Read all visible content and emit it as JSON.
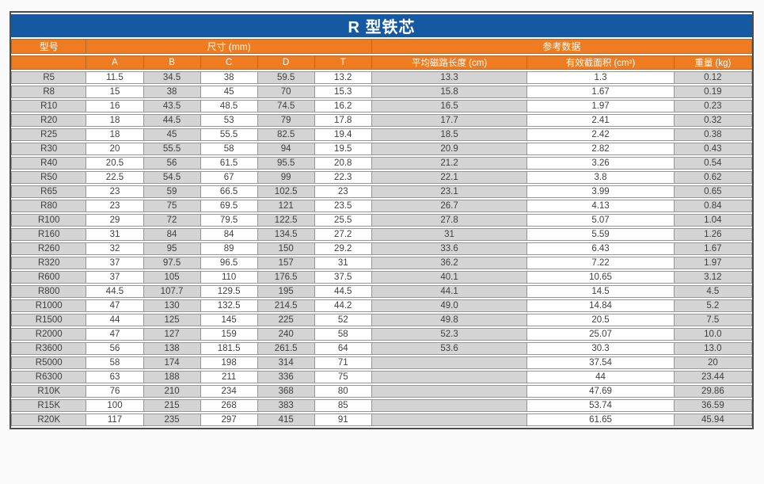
{
  "table": {
    "title": "R 型铁芯",
    "colors": {
      "title_bg": "#1559a2",
      "header_bg": "#ef7c20",
      "header_text": "#ffffff",
      "col_gray": "#d4d4d4",
      "col_white": "#ffffff",
      "grid": "#969696",
      "outer_border": "#4c4c4c",
      "cell_text": "#3f3f3f"
    },
    "headers": {
      "model": "型号",
      "size_group": "尺寸 (mm)",
      "ref_group": "参考数据",
      "size_cols": [
        "A",
        "B",
        "C",
        "D",
        "T"
      ],
      "ref_cols": [
        "平均磁路长度 (cm)",
        "有效截面积 (cm²)",
        "重量 (kg)"
      ]
    },
    "rows": [
      {
        "model": "R5",
        "values": [
          "11.5",
          "34.5",
          "38",
          "59.5",
          "13.2",
          "13.3",
          "1.3",
          "0.12"
        ]
      },
      {
        "model": "R8",
        "values": [
          "15",
          "38",
          "45",
          "70",
          "15.3",
          "15.8",
          "1.67",
          "0.19"
        ]
      },
      {
        "model": "R10",
        "values": [
          "16",
          "43.5",
          "48.5",
          "74.5",
          "16.2",
          "16.5",
          "1.97",
          "0.23"
        ]
      },
      {
        "model": "R20",
        "values": [
          "18",
          "44.5",
          "53",
          "79",
          "17.8",
          "17.7",
          "2.41",
          "0.32"
        ]
      },
      {
        "model": "R25",
        "values": [
          "18",
          "45",
          "55.5",
          "82.5",
          "19.4",
          "18.5",
          "2.42",
          "0.38"
        ]
      },
      {
        "model": "R30",
        "values": [
          "20",
          "55.5",
          "58",
          "94",
          "19.5",
          "20.9",
          "2.82",
          "0.43"
        ]
      },
      {
        "model": "R40",
        "values": [
          "20.5",
          "56",
          "61.5",
          "95.5",
          "20.8",
          "21.2",
          "3.26",
          "0.54"
        ]
      },
      {
        "model": "R50",
        "values": [
          "22.5",
          "54.5",
          "67",
          "99",
          "22.3",
          "22.1",
          "3.8",
          "0.62"
        ]
      },
      {
        "model": "R65",
        "values": [
          "23",
          "59",
          "66.5",
          "102.5",
          "23",
          "23.1",
          "3.99",
          "0.65"
        ]
      },
      {
        "model": "R80",
        "values": [
          "23",
          "75",
          "69.5",
          "121",
          "23.5",
          "26.7",
          "4.13",
          "0.84"
        ]
      },
      {
        "model": "R100",
        "values": [
          "29",
          "72",
          "79.5",
          "122.5",
          "25.5",
          "27.8",
          "5.07",
          "1.04"
        ]
      },
      {
        "model": "R160",
        "values": [
          "31",
          "84",
          "84",
          "134.5",
          "27.2",
          "31",
          "5.59",
          "1.26"
        ]
      },
      {
        "model": "R260",
        "values": [
          "32",
          "95",
          "89",
          "150",
          "29.2",
          "33.6",
          "6.43",
          "1.67"
        ]
      },
      {
        "model": "R320",
        "values": [
          "37",
          "97.5",
          "96.5",
          "157",
          "31",
          "36.2",
          "7.22",
          "1.97"
        ]
      },
      {
        "model": "R600",
        "values": [
          "37",
          "105",
          "110",
          "176.5",
          "37.5",
          "40.1",
          "10.65",
          "3.12"
        ]
      },
      {
        "model": "R800",
        "values": [
          "44.5",
          "107.7",
          "129.5",
          "195",
          "44.5",
          "44.1",
          "14.5",
          "4.5"
        ]
      },
      {
        "model": "R1000",
        "values": [
          "47",
          "130",
          "132.5",
          "214.5",
          "44.2",
          "49.0",
          "14.84",
          "5.2"
        ]
      },
      {
        "model": "R1500",
        "values": [
          "44",
          "125",
          "145",
          "225",
          "52",
          "49.8",
          "20.5",
          "7.5"
        ]
      },
      {
        "model": "R2000",
        "values": [
          "47",
          "127",
          "159",
          "240",
          "58",
          "52.3",
          "25.07",
          "10.0"
        ]
      },
      {
        "model": "R3600",
        "values": [
          "56",
          "138",
          "181.5",
          "261.5",
          "64",
          "53.6",
          "30.3",
          "13.0"
        ]
      },
      {
        "model": "R5000",
        "values": [
          "58",
          "174",
          "198",
          "314",
          "71",
          "",
          "37.54",
          "20"
        ]
      },
      {
        "model": "R6300",
        "values": [
          "63",
          "188",
          "211",
          "336",
          "75",
          "",
          "44",
          "23.44"
        ]
      },
      {
        "model": "R10K",
        "values": [
          "76",
          "210",
          "234",
          "368",
          "80",
          "",
          "47.69",
          "29.86"
        ]
      },
      {
        "model": "R15K",
        "values": [
          "100",
          "215",
          "268",
          "383",
          "85",
          "",
          "53.74",
          "36.59"
        ]
      },
      {
        "model": "R20K",
        "values": [
          "117",
          "235",
          "297",
          "415",
          "91",
          "",
          "61.65",
          "45.94"
        ]
      }
    ]
  }
}
